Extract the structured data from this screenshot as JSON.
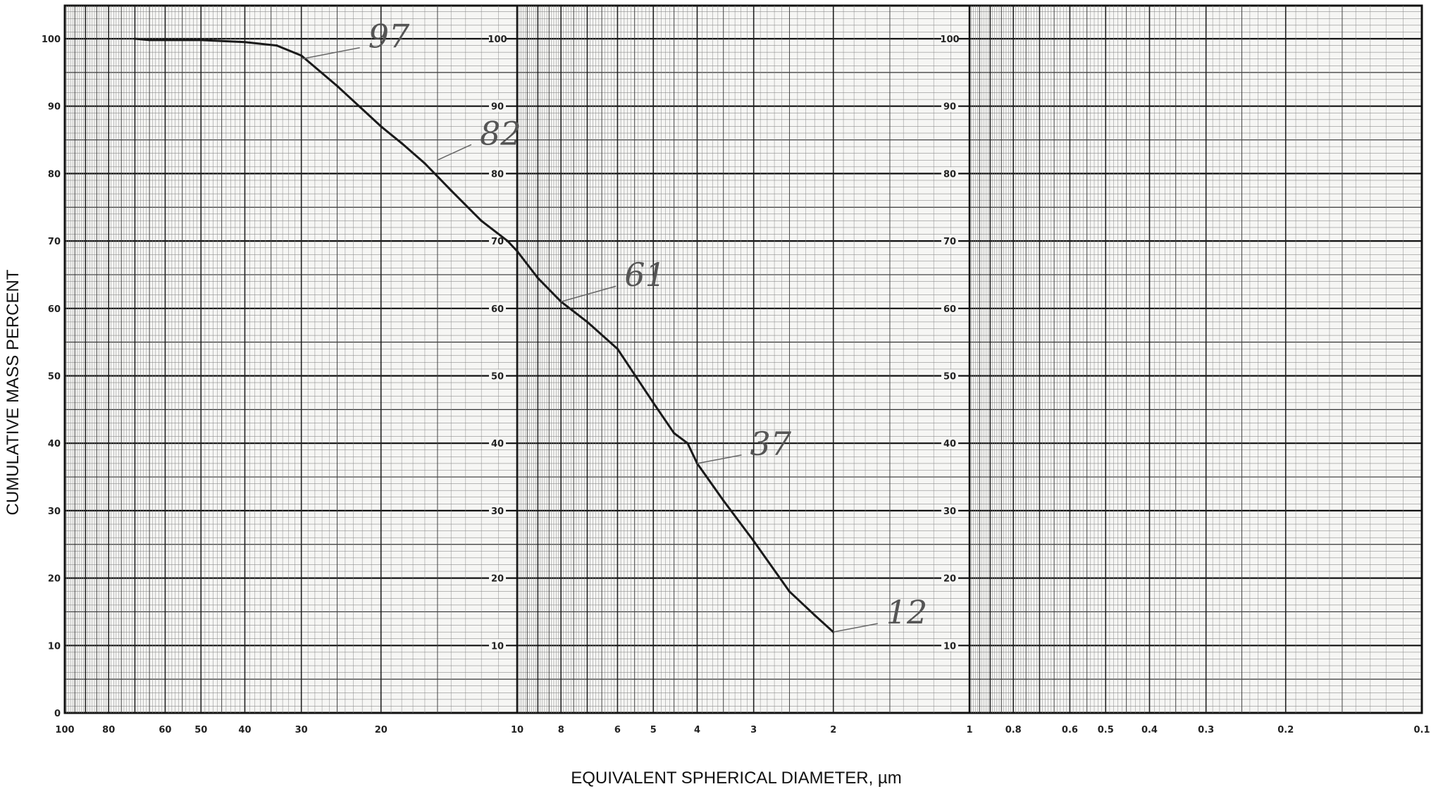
{
  "chart_data": {
    "type": "line",
    "title": "",
    "xlabel": "EQUIVALENT SPHERICAL DIAMETER, µm",
    "ylabel": "CUMULATIVE MASS PERCENT",
    "x_scale": "log",
    "x_direction": "decreasing",
    "xlim": [
      100,
      0.1
    ],
    "ylim": [
      0,
      104
    ],
    "grid": true,
    "x_ticks": [
      {
        "v": 100,
        "label": "100"
      },
      {
        "v": 80,
        "label": "80"
      },
      {
        "v": 60,
        "label": "60"
      },
      {
        "v": 50,
        "label": "50"
      },
      {
        "v": 40,
        "label": "40"
      },
      {
        "v": 30,
        "label": "30"
      },
      {
        "v": 20,
        "label": "20"
      },
      {
        "v": 10,
        "label": "10"
      },
      {
        "v": 8,
        "label": "8"
      },
      {
        "v": 6,
        "label": "6"
      },
      {
        "v": 5,
        "label": "5"
      },
      {
        "v": 4,
        "label": "4"
      },
      {
        "v": 3,
        "label": "3"
      },
      {
        "v": 2,
        "label": "2"
      },
      {
        "v": 1,
        "label": "1"
      },
      {
        "v": 0.8,
        "label": "0.8"
      },
      {
        "v": 0.6,
        "label": "0.6"
      },
      {
        "v": 0.5,
        "label": "0.5"
      },
      {
        "v": 0.4,
        "label": "0.4"
      },
      {
        "v": 0.3,
        "label": "0.3"
      },
      {
        "v": 0.2,
        "label": "0.2"
      },
      {
        "v": 0.1,
        "label": "0.1"
      }
    ],
    "y_ticks": [
      {
        "v": 0,
        "label": "0"
      },
      {
        "v": 10,
        "label": "10"
      },
      {
        "v": 20,
        "label": "20"
      },
      {
        "v": 30,
        "label": "30"
      },
      {
        "v": 40,
        "label": "40"
      },
      {
        "v": 50,
        "label": "50"
      },
      {
        "v": 60,
        "label": "60"
      },
      {
        "v": 70,
        "label": "70"
      },
      {
        "v": 80,
        "label": "80"
      },
      {
        "v": 90,
        "label": "90"
      },
      {
        "v": 100,
        "label": "100"
      }
    ],
    "inner_y_labels": [
      "100",
      "90",
      "80",
      "70",
      "60",
      "50",
      "40",
      "30",
      "20",
      "10"
    ],
    "series": [
      {
        "x": [
          70,
          65,
          60,
          50,
          40,
          34,
          30,
          25,
          20,
          18,
          16,
          14,
          12,
          10.5,
          10,
          9,
          8,
          7,
          6,
          5,
          4.5,
          4.2,
          4,
          3.5,
          3,
          2.5,
          2.2,
          2
        ],
        "y": [
          100,
          99.8,
          99.8,
          99.8,
          99.5,
          99,
          97.5,
          93,
          87,
          84.5,
          81.5,
          77.5,
          73,
          70,
          68.5,
          64.5,
          61,
          58,
          54,
          46,
          41.5,
          40,
          37,
          31.5,
          25.5,
          18,
          14.5,
          12
        ]
      }
    ],
    "annotations": [
      {
        "text": "97",
        "x": 30,
        "y": 97
      },
      {
        "text": "82",
        "x": 15,
        "y": 82
      },
      {
        "text": "61",
        "x": 8,
        "y": 61
      },
      {
        "text": "37",
        "x": 4,
        "y": 37
      },
      {
        "text": "12",
        "x": 2,
        "y": 12
      }
    ]
  }
}
